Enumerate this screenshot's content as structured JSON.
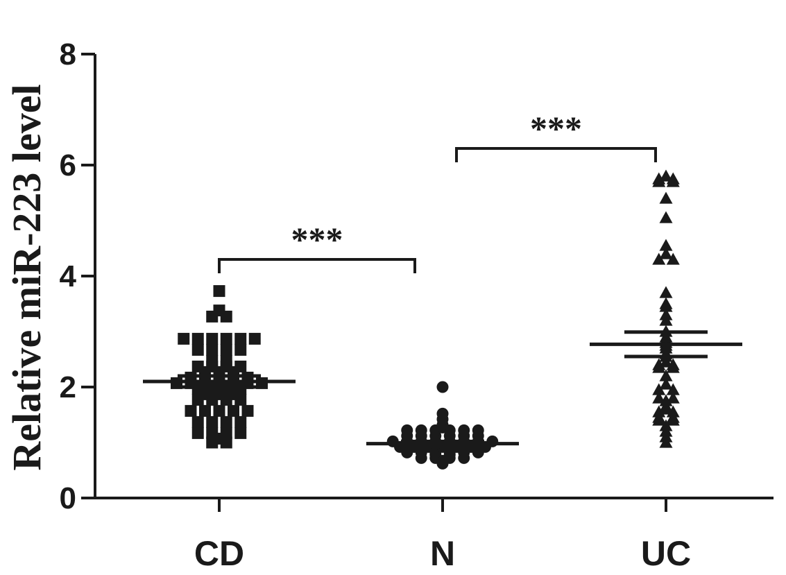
{
  "chart_data": {
    "type": "scatter",
    "ylabel": "Relative miR-223 level",
    "xlabel": "",
    "title": "",
    "ylim": [
      0,
      8
    ],
    "yticks": [
      0,
      2,
      4,
      6,
      8
    ],
    "categories": [
      "CD",
      "N",
      "UC"
    ],
    "color": "#1a1a1a",
    "groups": [
      {
        "category": "CD",
        "marker": "square",
        "mean": 2.1,
        "sem": 0.1,
        "values": [
          3.73,
          3.38,
          3.27,
          3.27,
          2.87,
          2.87,
          2.87,
          2.87,
          2.87,
          2.87,
          2.67,
          2.67,
          2.67,
          2.67,
          2.47,
          2.47,
          2.37,
          2.37,
          2.37,
          2.37,
          2.27,
          2.27,
          2.27,
          2.17,
          2.17,
          2.17,
          2.17,
          2.17,
          2.07,
          2.07,
          2.07,
          2.07,
          2.07,
          2.07,
          2.07,
          1.97,
          1.97,
          1.97,
          1.97,
          1.87,
          1.87,
          1.87,
          1.77,
          1.77,
          1.77,
          1.77,
          1.57,
          1.57,
          1.57,
          1.57,
          1.57,
          1.37,
          1.37,
          1.37,
          1.37,
          1.17,
          1.17,
          1.17,
          1.17,
          1.07,
          1.0,
          1.0
        ]
      },
      {
        "category": "N",
        "marker": "circle",
        "mean": 0.98,
        "sem": 0.04,
        "values": [
          2.0,
          1.52,
          1.42,
          1.32,
          1.27,
          1.22,
          1.22,
          1.22,
          1.22,
          1.22,
          1.22,
          1.12,
          1.12,
          1.12,
          1.12,
          1.12,
          1.12,
          1.02,
          1.02,
          1.02,
          1.02,
          1.02,
          1.02,
          1.02,
          1.02,
          0.97,
          0.97,
          0.92,
          0.92,
          0.92,
          0.92,
          0.92,
          0.92,
          0.92,
          0.82,
          0.82,
          0.82,
          0.82,
          0.82,
          0.82,
          0.78,
          0.78,
          0.72,
          0.72,
          0.72,
          0.72,
          0.67,
          0.62
        ]
      },
      {
        "category": "UC",
        "marker": "triangle",
        "mean": 2.77,
        "sem": 0.22,
        "values": [
          5.8,
          5.75,
          5.75,
          5.7,
          5.7,
          5.4,
          5.05,
          4.55,
          4.4,
          4.3,
          4.3,
          3.7,
          3.5,
          3.45,
          3.3,
          3.2,
          3.0,
          2.9,
          2.85,
          2.8,
          2.75,
          2.7,
          2.6,
          2.55,
          2.45,
          2.4,
          2.4,
          2.35,
          2.35,
          2.2,
          2.05,
          1.95,
          1.95,
          1.8,
          1.8,
          1.75,
          1.65,
          1.6,
          1.55,
          1.55,
          1.45,
          1.45,
          1.4,
          1.4,
          1.3,
          1.2,
          1.1,
          1.0
        ]
      }
    ],
    "comparisons": [
      {
        "from": "CD",
        "to": "N",
        "y": 4.3,
        "label": "***"
      },
      {
        "from": "N",
        "to": "UC",
        "y": 6.3,
        "label": "***"
      }
    ]
  }
}
